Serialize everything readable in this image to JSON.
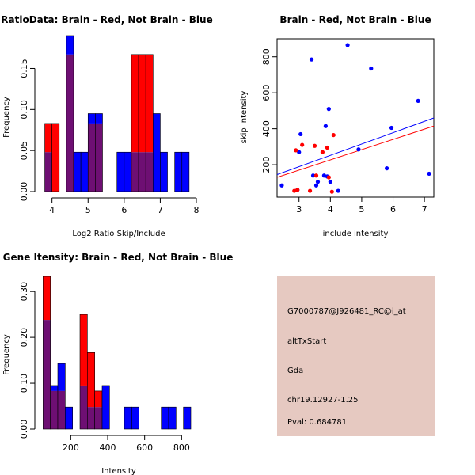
{
  "colors": {
    "red": "#ff0000",
    "blue": "#0000ff",
    "overlap": "#6e0f73",
    "info_bg": "#e6c9c1",
    "pval": "#8b0000"
  },
  "chart_data": [
    {
      "type": "bar",
      "subtype": "overlaid-histogram",
      "title": "RatioData: Brain - Red, Not Brain - Blue",
      "xlabel": "Log2 Ratio Skip/Include",
      "ylabel": "Frequency",
      "xlim": [
        3.7,
        8.0
      ],
      "ylim": [
        0,
        0.19
      ],
      "xticks": [
        4,
        5,
        6,
        7,
        8
      ],
      "yticks": [
        0.0,
        0.05,
        0.1,
        0.15
      ],
      "bin_edges": [
        3.8,
        4.0,
        4.2,
        4.4,
        4.6,
        4.8,
        5.0,
        5.2,
        5.4,
        5.6,
        5.8,
        6.0,
        6.2,
        6.4,
        6.6,
        6.8,
        7.0,
        7.2,
        7.4,
        7.6,
        7.8
      ],
      "series": [
        {
          "name": "Not Brain",
          "color": "blue",
          "values": [
            0.048,
            0,
            0,
            0.19,
            0.048,
            0.048,
            0.095,
            0.095,
            0,
            0,
            0.048,
            0.048,
            0.048,
            0.048,
            0.048,
            0.095,
            0.048,
            0,
            0.048,
            0.048
          ]
        },
        {
          "name": "Brain",
          "color": "red",
          "values": [
            0.083,
            0.083,
            0,
            0.167,
            0,
            0,
            0.083,
            0.083,
            0,
            0,
            0,
            0,
            0.167,
            0.167,
            0.167,
            0,
            0,
            0,
            0,
            0
          ]
        }
      ]
    },
    {
      "type": "scatter",
      "title": "Brain - Red, Not Brain - Blue",
      "xlabel": "include intensity",
      "ylabel": "skip intensity",
      "xlim": [
        2.3,
        7.3
      ],
      "ylim": [
        20,
        900
      ],
      "xticks": [
        3,
        4,
        5,
        6,
        7
      ],
      "yticks": [
        200,
        400,
        600,
        800
      ],
      "series": [
        {
          "name": "Not Brain",
          "color": "blue",
          "x": [
            2.45,
            2.95,
            3.0,
            3.05,
            3.4,
            3.45,
            3.55,
            3.6,
            3.8,
            3.85,
            3.9,
            3.95,
            4.0,
            4.25,
            4.55,
            4.9,
            5.3,
            5.8,
            5.95,
            6.8,
            7.15
          ],
          "y": [
            85,
            60,
            270,
            370,
            785,
            140,
            85,
            105,
            140,
            415,
            135,
            510,
            105,
            55,
            865,
            285,
            735,
            180,
            405,
            555,
            150
          ]
        },
        {
          "name": "Brain",
          "color": "red",
          "x": [
            2.85,
            2.9,
            2.95,
            3.1,
            3.35,
            3.5,
            3.55,
            3.75,
            3.9,
            3.95,
            4.05,
            4.1
          ],
          "y": [
            55,
            280,
            60,
            310,
            55,
            305,
            140,
            270,
            295,
            130,
            50,
            365
          ]
        }
      ],
      "trend_lines": [
        {
          "name": "Not Brain fit",
          "color": "blue",
          "x": [
            2.3,
            7.3
          ],
          "y": [
            145,
            460
          ]
        },
        {
          "name": "Brain fit",
          "color": "red",
          "x": [
            2.3,
            7.3
          ],
          "y": [
            130,
            415
          ]
        }
      ]
    },
    {
      "type": "bar",
      "subtype": "overlaid-histogram",
      "title": "Gene Itensity: Brain - Red, Not Brain - Blue",
      "xlabel": "Intensity",
      "ylabel": "Frequency",
      "xlim": [
        40,
        880
      ],
      "ylim": [
        0,
        0.34
      ],
      "xticks": [
        200,
        400,
        600,
        800
      ],
      "yticks": [
        0.0,
        0.1,
        0.2,
        0.3
      ],
      "bin_edges": [
        50,
        90,
        130,
        170,
        210,
        250,
        290,
        330,
        370,
        410,
        450,
        490,
        530,
        570,
        610,
        650,
        690,
        730,
        770,
        810,
        850
      ],
      "series": [
        {
          "name": "Not Brain",
          "color": "blue",
          "values": [
            0.238,
            0.095,
            0.143,
            0.048,
            0,
            0.095,
            0.048,
            0.048,
            0.095,
            0,
            0,
            0.048,
            0.048,
            0,
            0,
            0,
            0.048,
            0.048,
            0,
            0.048
          ]
        },
        {
          "name": "Brain",
          "color": "red",
          "values": [
            0.333,
            0.083,
            0.083,
            0,
            0,
            0.25,
            0.167,
            0.083,
            0,
            0,
            0,
            0,
            0,
            0,
            0,
            0,
            0,
            0,
            0,
            0
          ]
        }
      ]
    }
  ],
  "info_panel": {
    "probe_id": "G7000787@J926481_RC@i_at",
    "event_type": "altTxStart",
    "gene": "Gda",
    "location": "chr19.12927-1.25",
    "pval": "Pval: 0.684781"
  }
}
